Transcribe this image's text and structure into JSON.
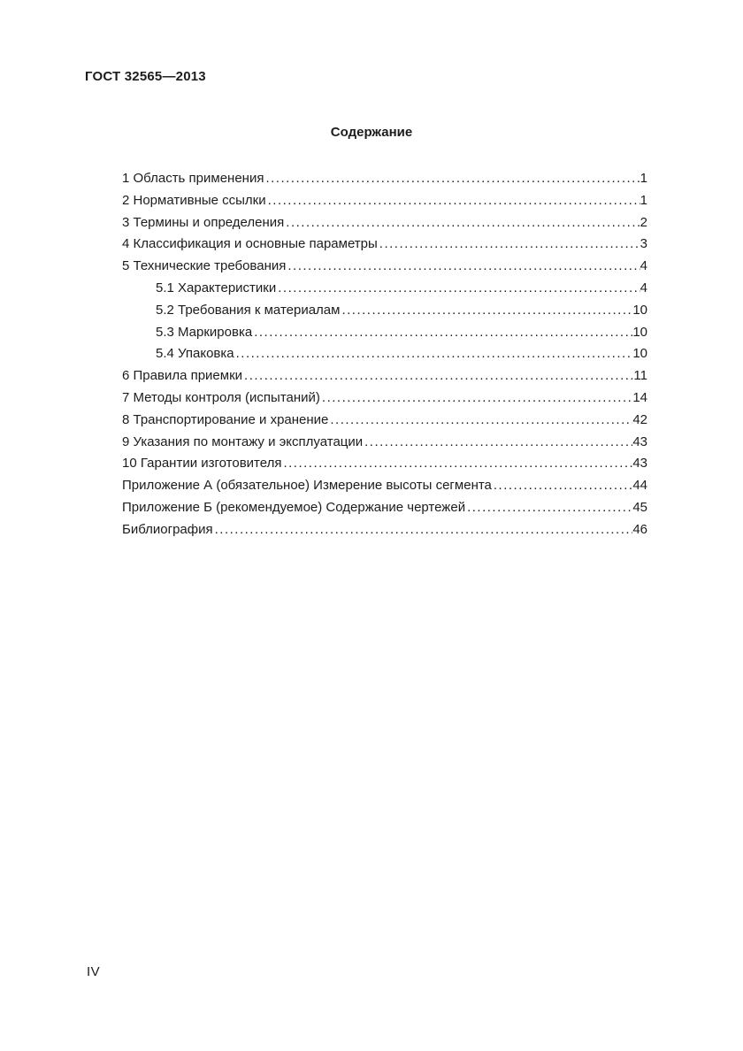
{
  "document": {
    "header": "ГОСТ 32565—2013",
    "footer_page_number": "IV"
  },
  "toc": {
    "title": "Содержание",
    "entries": [
      {
        "label": "1 Область применения",
        "page": "1",
        "level": 0
      },
      {
        "label": "2 Нормативные ссылки",
        "page": "1",
        "level": 0
      },
      {
        "label": "3 Термины и определения",
        "page": "2",
        "level": 0
      },
      {
        "label": "4 Классификация и основные параметры",
        "page": "3",
        "level": 0
      },
      {
        "label": "5 Технические требования",
        "page": "4",
        "level": 0
      },
      {
        "label": "5.1 Характеристики",
        "page": "4",
        "level": 1
      },
      {
        "label": "5.2 Требования к материалам",
        "page": "10",
        "level": 1
      },
      {
        "label": "5.3 Маркировка",
        "page": "10",
        "level": 1
      },
      {
        "label": "5.4 Упаковка",
        "page": "10",
        "level": 1
      },
      {
        "label": "6 Правила приемки",
        "page": "11",
        "level": 0
      },
      {
        "label": "7 Методы контроля (испытаний)",
        "page": "14",
        "level": 0
      },
      {
        "label": "8 Транспортирование и хранение",
        "page": "42",
        "level": 0
      },
      {
        "label": "9 Указания по монтажу и эксплуатации",
        "page": "43",
        "level": 0
      },
      {
        "label": "10 Гарантии изготовителя",
        "page": "43",
        "level": 0
      },
      {
        "label": "Приложение А (обязательное) Измерение высоты сегмента",
        "page": "44",
        "level": 0
      },
      {
        "label": "Приложение Б (рекомендуемое) Содержание чертежей",
        "page": "45",
        "level": 0
      },
      {
        "label": "Библиография",
        "page": "46",
        "level": 0
      }
    ]
  },
  "colors": {
    "background": "#ffffff",
    "text": "#1c1c1c"
  }
}
